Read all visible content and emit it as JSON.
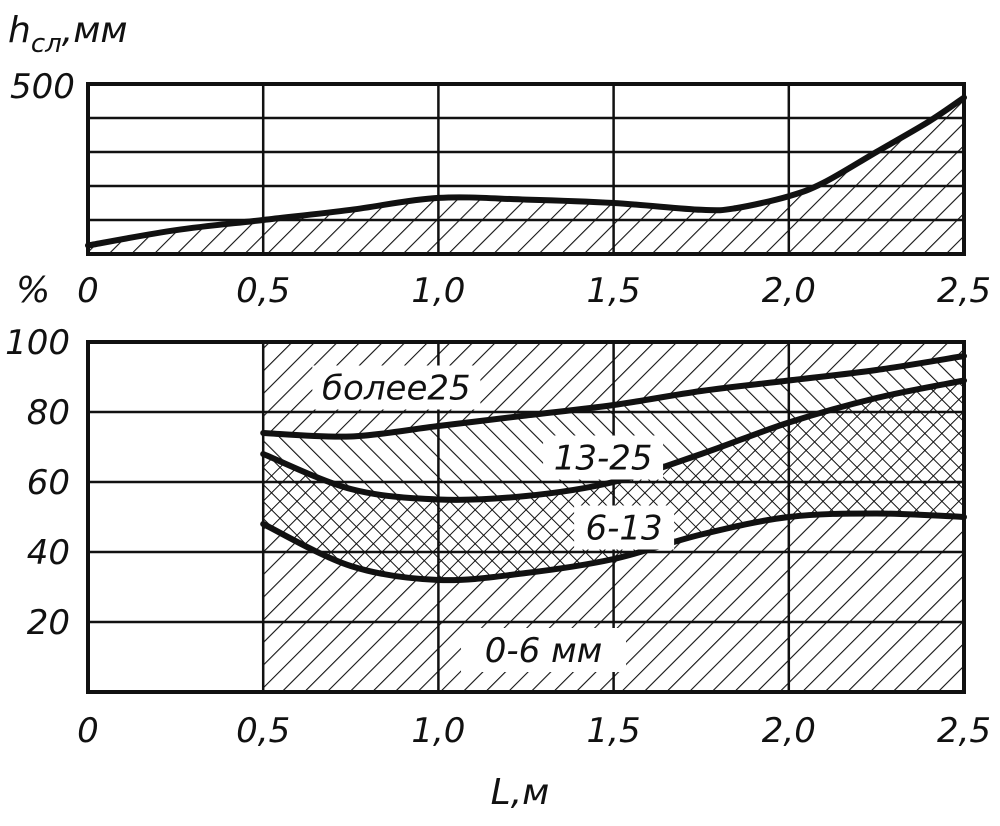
{
  "chart_data": [
    {
      "type": "area",
      "ylabel": "h",
      "ylabel_sub": "сл",
      "ylabel_unit": ",мм",
      "xlim": [
        0,
        2.5
      ],
      "ylim": [
        0,
        500
      ],
      "ytick_labels": [
        "500"
      ],
      "xticks": [
        0,
        0.5,
        1.0,
        1.5,
        2.0,
        2.5
      ],
      "xtick_labels": [
        "0",
        "0,5",
        "1,0",
        "1,5",
        "2,0",
        "2,5"
      ],
      "grid": true,
      "series": [
        {
          "x": [
            0,
            0.25,
            0.5,
            0.75,
            1.0,
            1.25,
            1.5,
            1.75,
            1.85,
            2.0,
            2.1,
            2.25,
            2.4,
            2.5
          ],
          "y": [
            25,
            70,
            100,
            130,
            165,
            160,
            150,
            130,
            135,
            170,
            210,
            300,
            390,
            460
          ]
        }
      ]
    },
    {
      "type": "area",
      "ylabel": "%",
      "xlabel": "L,м",
      "xlim": [
        0,
        2.5
      ],
      "ylim": [
        0,
        100
      ],
      "yticks": [
        20,
        40,
        60,
        80,
        100
      ],
      "ytick_labels": [
        "20",
        "40",
        "60",
        "80",
        "100"
      ],
      "xticks": [
        0,
        0.5,
        1.0,
        1.5,
        2.0,
        2.5
      ],
      "xtick_labels": [
        "0",
        "0,5",
        "1,0",
        "1,5",
        "2,0",
        "2,5"
      ],
      "grid": true,
      "series": [
        {
          "name": "0-6 мм",
          "x": [
            0.5,
            0.75,
            1.0,
            1.25,
            1.5,
            1.75,
            2.0,
            2.25,
            2.5
          ],
          "y": [
            48,
            36,
            32,
            34,
            38,
            45,
            50,
            51,
            50
          ]
        },
        {
          "name": "6-13",
          "x": [
            0.5,
            0.75,
            1.0,
            1.25,
            1.5,
            1.75,
            2.0,
            2.25,
            2.5
          ],
          "y": [
            68,
            58,
            55,
            56,
            60,
            68,
            77,
            84,
            89
          ]
        },
        {
          "name": "13-25",
          "x": [
            0.5,
            0.75,
            1.0,
            1.25,
            1.5,
            1.75,
            2.0,
            2.25,
            2.5
          ],
          "y": [
            74,
            73,
            76,
            79,
            82,
            86,
            89,
            92,
            96
          ]
        },
        {
          "name": "более 25",
          "x": [
            0.5,
            2.5
          ],
          "y": [
            100,
            100
          ]
        }
      ],
      "region_labels": [
        "более25",
        "13-25",
        "6-13",
        "0-6 мм"
      ]
    }
  ]
}
